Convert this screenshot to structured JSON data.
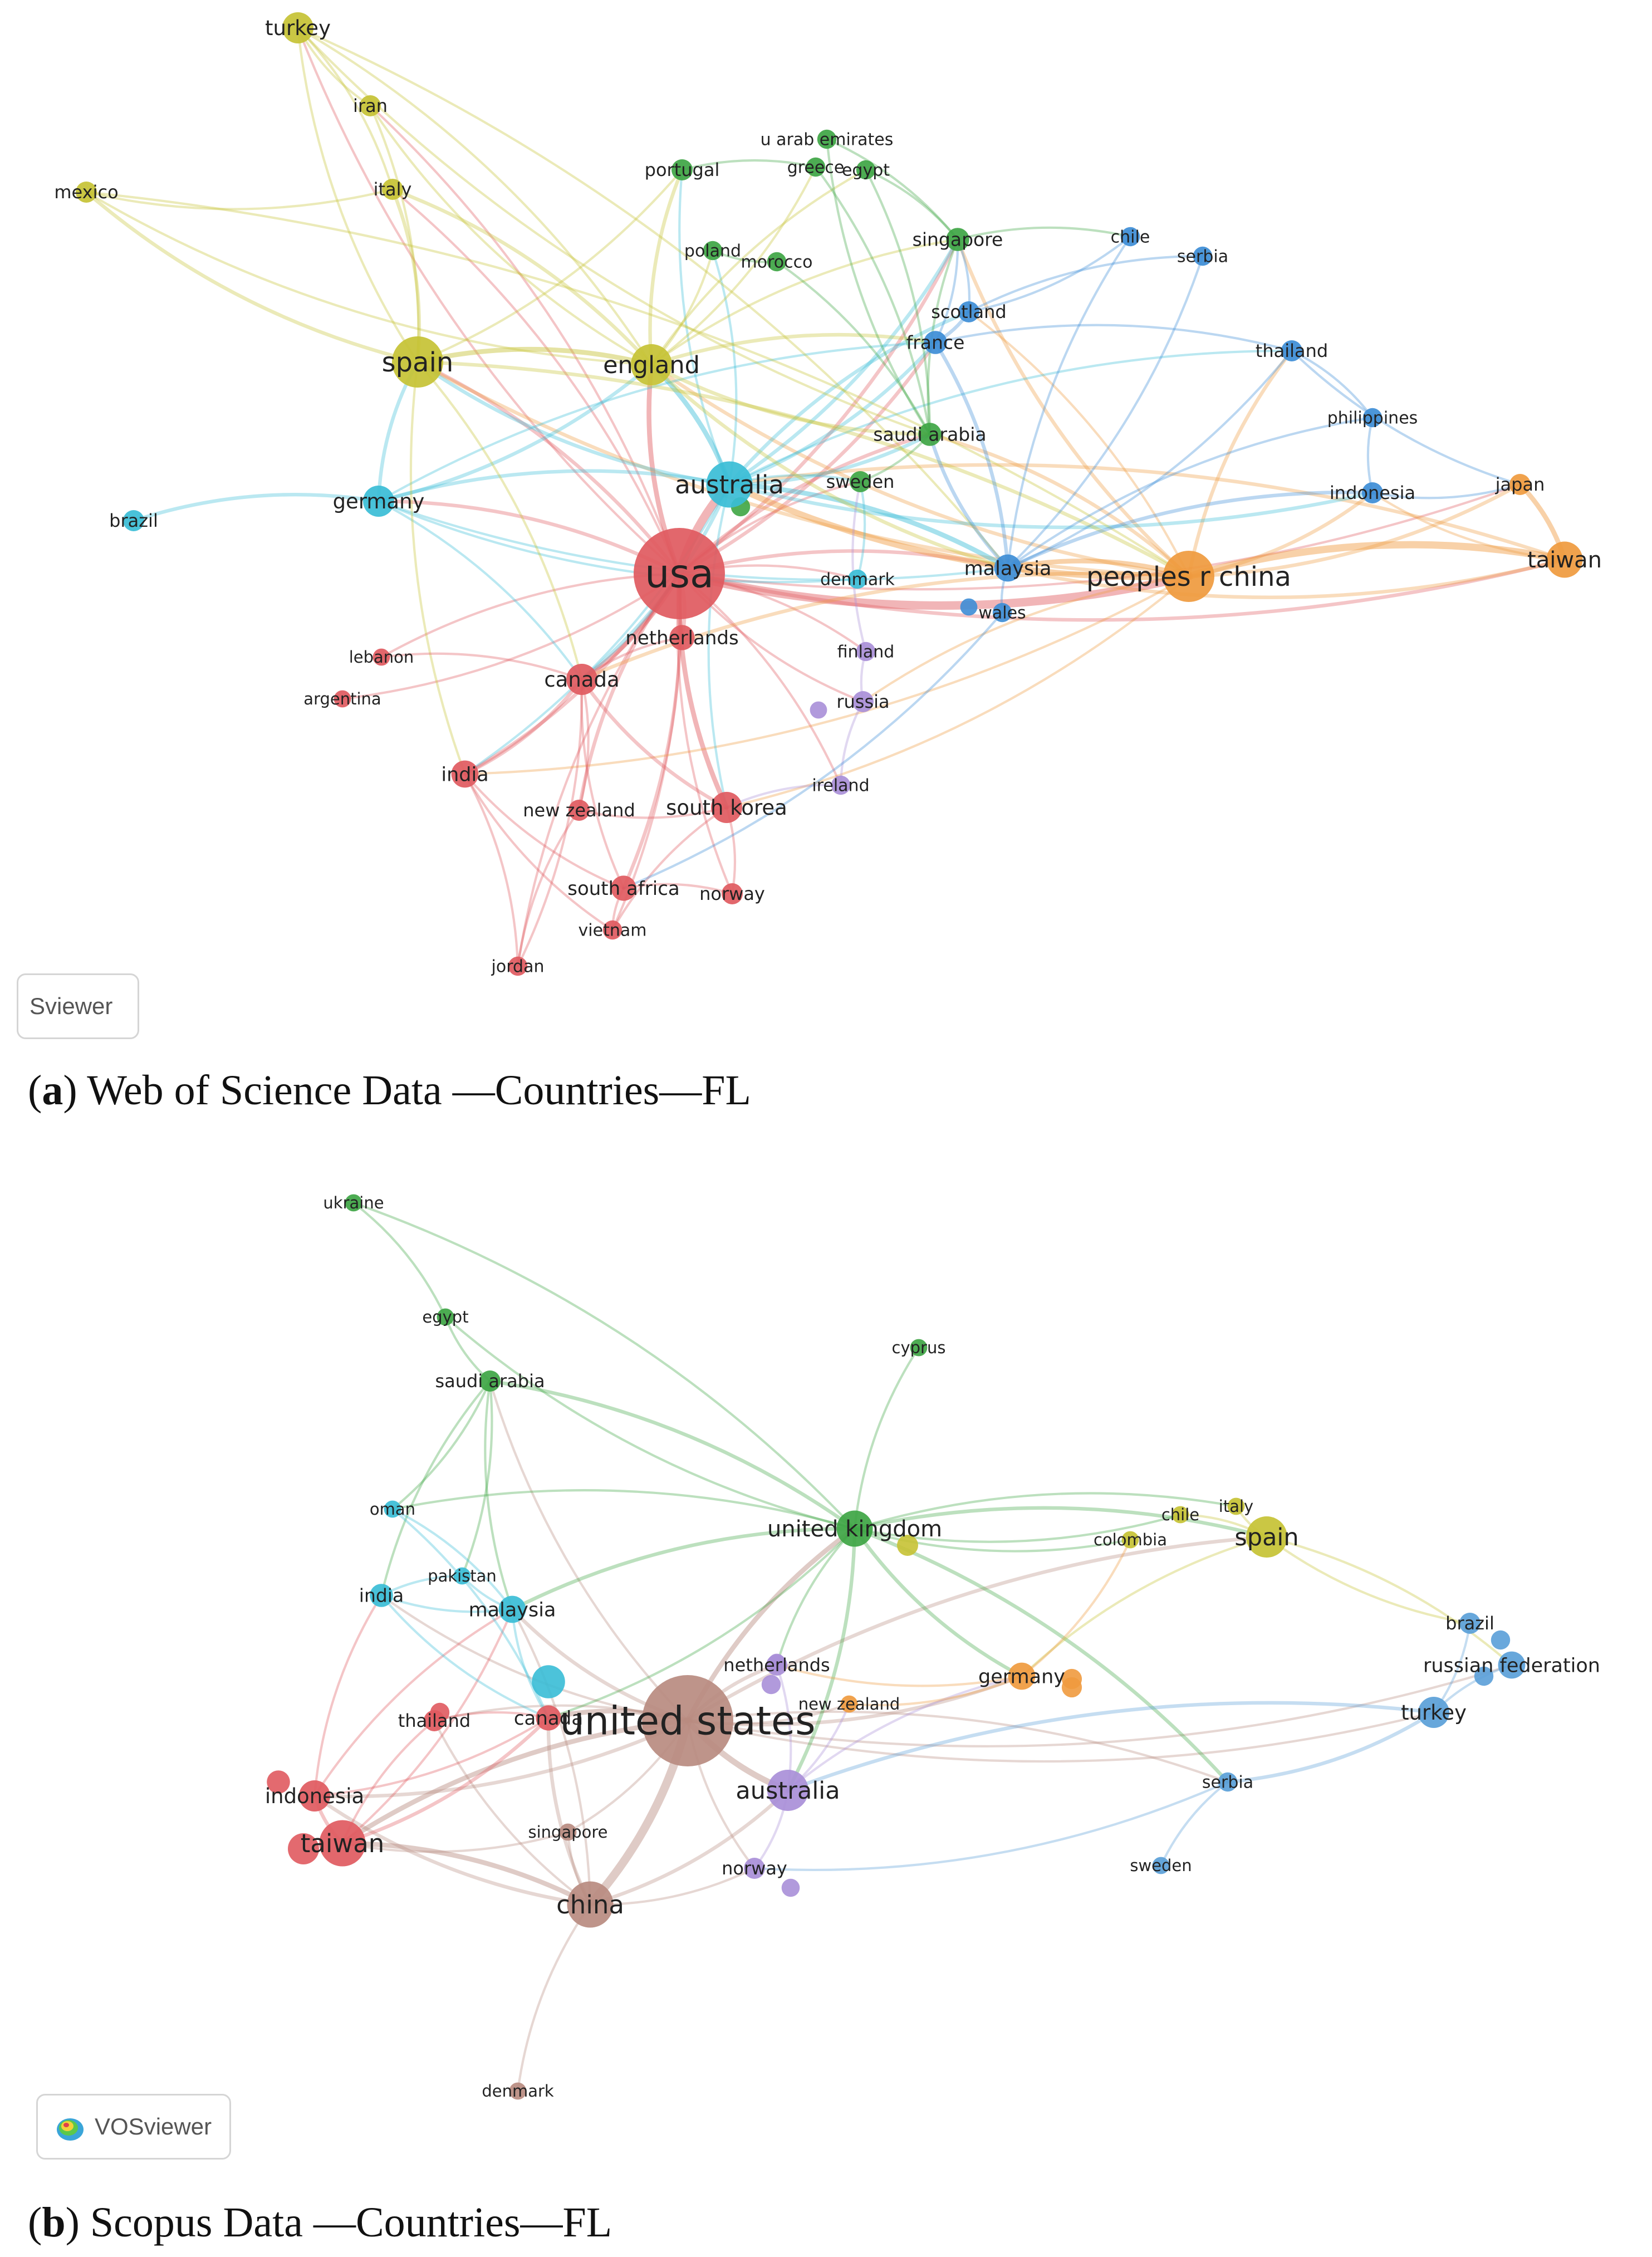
{
  "panels": [
    {
      "id": "a",
      "caption_letter": "a",
      "caption_text": " Web of Science Data —Countries—FL",
      "logo_text": "Sviewer",
      "cluster_colors": {
        "red": "#e05a5f",
        "yellow": "#c6c234",
        "green": "#3ea544",
        "cyan": "#39bdd6",
        "blue": "#3d8dd6",
        "orange": "#ef9a3e",
        "purple": "#a98fd8"
      },
      "nodes": [
        {
          "id": "turkey",
          "label": "turkey",
          "cluster": "yellow",
          "weight": 2.0
        },
        {
          "id": "iran",
          "label": "iran",
          "cluster": "yellow",
          "weight": 1.0
        },
        {
          "id": "italy",
          "label": "italy",
          "cluster": "yellow",
          "weight": 1.0
        },
        {
          "id": "mexico",
          "label": "mexico",
          "cluster": "yellow",
          "weight": 1.0
        },
        {
          "id": "spain",
          "label": "spain",
          "cluster": "yellow",
          "weight": 4.0
        },
        {
          "id": "england",
          "label": "england",
          "cluster": "yellow",
          "weight": 3.0
        },
        {
          "id": "portugal",
          "label": "portugal",
          "cluster": "green",
          "weight": 1.0
        },
        {
          "id": "uae",
          "label": "u arab emirates",
          "cluster": "green",
          "weight": 0.8
        },
        {
          "id": "greece",
          "label": "greece",
          "cluster": "green",
          "weight": 0.8
        },
        {
          "id": "egypt",
          "label": "egypt",
          "cluster": "green",
          "weight": 0.8
        },
        {
          "id": "poland",
          "label": "poland",
          "cluster": "green",
          "weight": 0.8
        },
        {
          "id": "morocco",
          "label": "morocco",
          "cluster": "green",
          "weight": 0.8
        },
        {
          "id": "singapore",
          "label": "singapore",
          "cluster": "green",
          "weight": 1.2
        },
        {
          "id": "saudi",
          "label": "saudi arabia",
          "cluster": "green",
          "weight": 1.2
        },
        {
          "id": "sweden",
          "label": "sweden",
          "cluster": "green",
          "weight": 1.0
        },
        {
          "id": "chile",
          "label": "chile",
          "cluster": "blue",
          "weight": 0.8
        },
        {
          "id": "serbia",
          "label": "serbia",
          "cluster": "blue",
          "weight": 0.8
        },
        {
          "id": "scotland",
          "label": "scotland",
          "cluster": "blue",
          "weight": 1.0
        },
        {
          "id": "france",
          "label": "france",
          "cluster": "blue",
          "weight": 1.2
        },
        {
          "id": "thailand",
          "label": "thailand",
          "cluster": "blue",
          "weight": 1.0
        },
        {
          "id": "philippines",
          "label": "philippines",
          "cluster": "blue",
          "weight": 0.8
        },
        {
          "id": "indonesia",
          "label": "indonesia",
          "cluster": "blue",
          "weight": 1.0
        },
        {
          "id": "malaysia",
          "label": "malaysia",
          "cluster": "blue",
          "weight": 1.6
        },
        {
          "id": "wales",
          "label": "wales",
          "cluster": "blue",
          "weight": 0.8
        },
        {
          "id": "japan",
          "label": "japan",
          "cluster": "orange",
          "weight": 1.0
        },
        {
          "id": "taiwan",
          "label": "taiwan",
          "cluster": "orange",
          "weight": 2.5
        },
        {
          "id": "prc",
          "label": "peoples r china",
          "cluster": "orange",
          "weight": 4.0
        },
        {
          "id": "australia",
          "label": "australia",
          "cluster": "cyan",
          "weight": 3.5
        },
        {
          "id": "germany",
          "label": "germany",
          "cluster": "cyan",
          "weight": 2.0
        },
        {
          "id": "brazil",
          "label": "brazil",
          "cluster": "cyan",
          "weight": 1.0
        },
        {
          "id": "denmark",
          "label": "denmark",
          "cluster": "cyan",
          "weight": 0.8
        },
        {
          "id": "usa",
          "label": "usa",
          "cluster": "red",
          "weight": 8.0
        },
        {
          "id": "netherlands",
          "label": "netherlands",
          "cluster": "red",
          "weight": 1.4
        },
        {
          "id": "canada",
          "label": "canada",
          "cluster": "red",
          "weight": 2.0
        },
        {
          "id": "lebanon",
          "label": "lebanon",
          "cluster": "red",
          "weight": 0.6
        },
        {
          "id": "argentina",
          "label": "argentina",
          "cluster": "red",
          "weight": 0.6
        },
        {
          "id": "india",
          "label": "india",
          "cluster": "red",
          "weight": 1.6
        },
        {
          "id": "newzealand",
          "label": "new zealand",
          "cluster": "red",
          "weight": 1.0
        },
        {
          "id": "southkorea",
          "label": "south korea",
          "cluster": "red",
          "weight": 2.0
        },
        {
          "id": "southafrica",
          "label": "south africa",
          "cluster": "red",
          "weight": 1.4
        },
        {
          "id": "norway",
          "label": "norway",
          "cluster": "red",
          "weight": 1.0
        },
        {
          "id": "vietnam",
          "label": "vietnam",
          "cluster": "red",
          "weight": 0.8
        },
        {
          "id": "jordan",
          "label": "jordan",
          "cluster": "red",
          "weight": 0.8
        },
        {
          "id": "finland",
          "label": "finland",
          "cluster": "purple",
          "weight": 0.8
        },
        {
          "id": "russia",
          "label": "russia",
          "cluster": "purple",
          "weight": 1.0
        },
        {
          "id": "ireland",
          "label": "ireland",
          "cluster": "purple",
          "weight": 0.8
        }
      ]
    },
    {
      "id": "b",
      "caption_letter": "b",
      "caption_text": " Scopus Data —Countries—FL",
      "logo_text": "VOSviewer",
      "cluster_colors": {
        "red": "#e05a5f",
        "yellow": "#c6c234",
        "green": "#3ea544",
        "cyan": "#39bdd6",
        "blue": "#5a9fd8",
        "orange": "#ef9a3e",
        "purple": "#a98fd8",
        "brown": "#b88b80"
      },
      "nodes": [
        {
          "id": "ukraine",
          "label": "ukraine",
          "cluster": "green",
          "weight": 0.6
        },
        {
          "id": "egypt",
          "label": "egypt",
          "cluster": "green",
          "weight": 0.6
        },
        {
          "id": "cyprus",
          "label": "cyprus",
          "cluster": "green",
          "weight": 0.6
        },
        {
          "id": "saudi",
          "label": "saudi arabia",
          "cluster": "green",
          "weight": 1.0
        },
        {
          "id": "uk",
          "label": "united kingdom",
          "cluster": "green",
          "weight": 2.5
        },
        {
          "id": "oman",
          "label": "oman",
          "cluster": "cyan",
          "weight": 0.6
        },
        {
          "id": "pakistan",
          "label": "pakistan",
          "cluster": "cyan",
          "weight": 0.6
        },
        {
          "id": "india",
          "label": "india",
          "cluster": "cyan",
          "weight": 1.2
        },
        {
          "id": "malaysia",
          "label": "malaysia",
          "cluster": "cyan",
          "weight": 1.6
        },
        {
          "id": "chile",
          "label": "chile",
          "cluster": "yellow",
          "weight": 0.6
        },
        {
          "id": "italy",
          "label": "italy",
          "cluster": "yellow",
          "weight": 0.6
        },
        {
          "id": "colombia",
          "label": "colombia",
          "cluster": "yellow",
          "weight": 0.6
        },
        {
          "id": "spain",
          "label": "spain",
          "cluster": "yellow",
          "weight": 3.0
        },
        {
          "id": "brazil",
          "label": "brazil",
          "cluster": "blue",
          "weight": 1.0
        },
        {
          "id": "russia",
          "label": "russian federation",
          "cluster": "blue",
          "weight": 1.6
        },
        {
          "id": "turkey",
          "label": "turkey",
          "cluster": "blue",
          "weight": 2.0
        },
        {
          "id": "serbia",
          "label": "serbia",
          "cluster": "blue",
          "weight": 0.8
        },
        {
          "id": "sweden",
          "label": "sweden",
          "cluster": "blue",
          "weight": 0.6
        },
        {
          "id": "netherlands",
          "label": "netherlands",
          "cluster": "purple",
          "weight": 1.0
        },
        {
          "id": "newzealand",
          "label": "new zealand",
          "cluster": "orange",
          "weight": 0.6
        },
        {
          "id": "germany",
          "label": "germany",
          "cluster": "orange",
          "weight": 1.6
        },
        {
          "id": "us",
          "label": "united states",
          "cluster": "brown",
          "weight": 8.0
        },
        {
          "id": "canada",
          "label": "canada",
          "cluster": "red",
          "weight": 1.4
        },
        {
          "id": "thailand",
          "label": "thailand",
          "cluster": "red",
          "weight": 1.0
        },
        {
          "id": "indonesia",
          "label": "indonesia",
          "cluster": "red",
          "weight": 2.0
        },
        {
          "id": "taiwan",
          "label": "taiwan",
          "cluster": "red",
          "weight": 3.5
        },
        {
          "id": "singapore",
          "label": "singapore",
          "cluster": "brown",
          "weight": 0.6
        },
        {
          "id": "australia",
          "label": "australia",
          "cluster": "purple",
          "weight": 3.0
        },
        {
          "id": "norway",
          "label": "norway",
          "cluster": "purple",
          "weight": 1.0
        },
        {
          "id": "china",
          "label": "china",
          "cluster": "brown",
          "weight": 3.5
        },
        {
          "id": "denmark",
          "label": "denmark",
          "cluster": "brown",
          "weight": 0.6
        }
      ]
    }
  ]
}
